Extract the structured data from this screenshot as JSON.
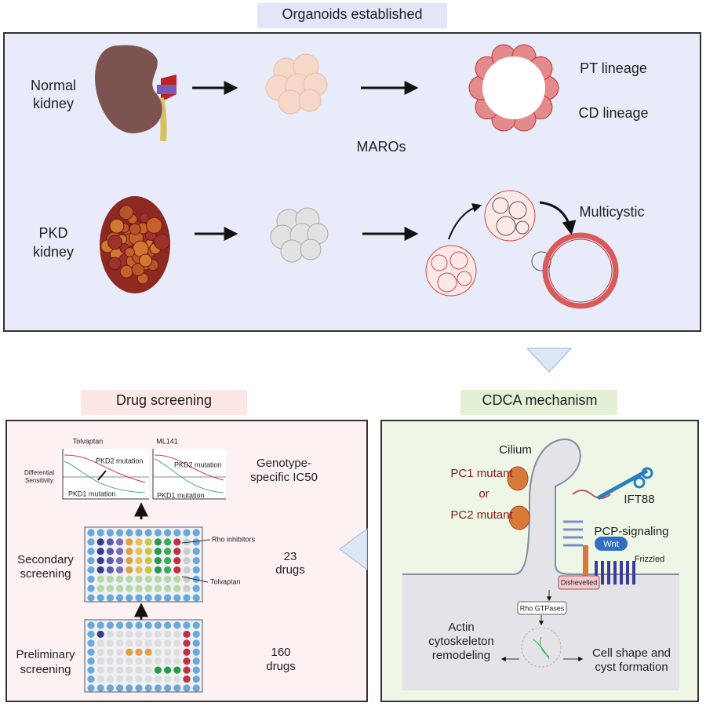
{
  "top": {
    "title": "Organoids established",
    "normal": [
      "Normal",
      "kidney"
    ],
    "pt": "PT lineage",
    "cd": "CD lineage",
    "maros": "MAROs",
    "pkd": [
      "PKD",
      "kidney"
    ],
    "multicystic": "Multicystic"
  },
  "drug": {
    "title": "Drug screening",
    "plot1": {
      "title": "Tolvaptan",
      "upper": "PKD2 mutation",
      "lower": "PKD1 mutation"
    },
    "plot2": {
      "title": "ML141",
      "upper": "PKD2 mutation",
      "lower": "PKD1 mutation"
    },
    "y_label": [
      "Differential",
      "Sensitivity"
    ],
    "ic50": [
      "Genotype-",
      "specific IC50"
    ],
    "rho": "Rho inhibitors",
    "tolvaptan": "Tolvaptan",
    "secondary": [
      "Secondary",
      "screening"
    ],
    "secondary_count": [
      "23",
      "drugs"
    ],
    "preliminary": [
      "Preliminary",
      "screening"
    ],
    "preliminary_count": [
      "160",
      "drugs"
    ]
  },
  "cdca": {
    "title": "CDCA mechanism",
    "cilium": "Cilium",
    "pc1": "PC1 mutant",
    "or": "or",
    "pc2": "PC2 mutant",
    "ift88": "IFT88",
    "pcp": "PCP-signaling",
    "wnt": "Wnt",
    "frizzled": "Frizzled",
    "dishevelled": "Dishevelled",
    "rho": "Rho GTPases",
    "actin": [
      "Actin",
      "cytoskeleton",
      "remodeling"
    ],
    "cell_shape": [
      "Cell shape and",
      "cyst formation"
    ]
  }
}
